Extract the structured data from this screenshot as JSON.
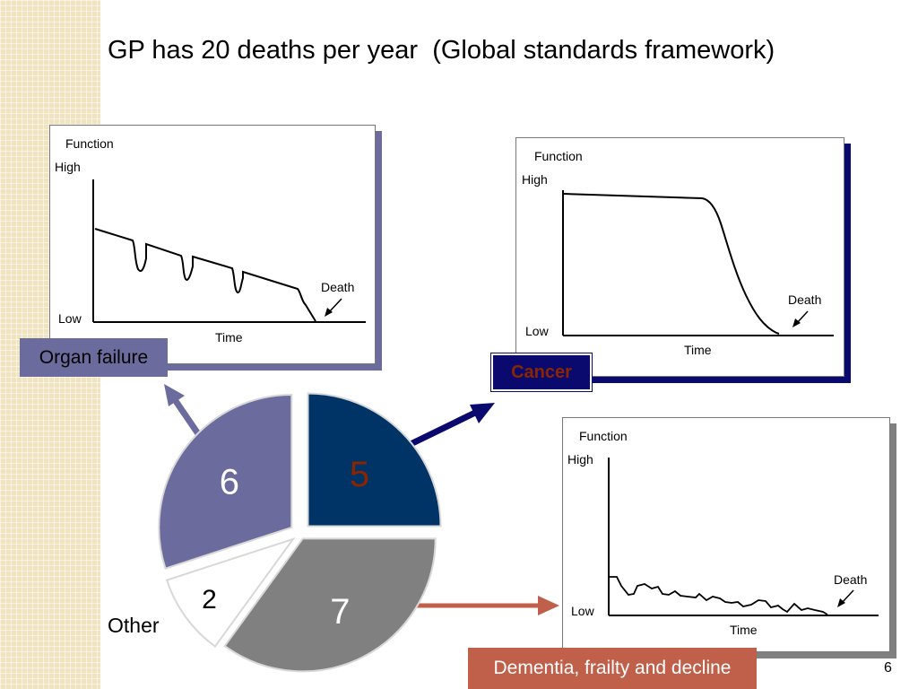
{
  "title": "GP has 20 deaths per year  (Global standards framework)",
  "page_number": "6",
  "colors": {
    "organ_failure": "#6b6b9e",
    "cancer": "#003366",
    "frailty": "#808080",
    "other": "#ffffff",
    "frailty_arrow": "#c0604a",
    "cancer_number": "#8b2500"
  },
  "panels": {
    "organ_failure": {
      "y_title": "Function",
      "high": "High",
      "low": "Low",
      "x_label": "Time",
      "death": "Death",
      "tag": "Organ failure"
    },
    "cancer": {
      "y_title": "Function",
      "high": "High",
      "low": "Low",
      "x_label": "Time",
      "death": "Death",
      "tag": "Cancer"
    },
    "frailty": {
      "y_title": "Function",
      "high": "High",
      "low": "Low",
      "x_label": "Time",
      "death": "Death",
      "tag": "Dementia, frailty and decline"
    }
  },
  "pie": {
    "other_label": "Other"
  },
  "chart_data": {
    "type": "pie",
    "slices": [
      {
        "label": "Cancer",
        "value": 5,
        "text": "5"
      },
      {
        "label": "Dementia, frailty and decline",
        "value": 7,
        "text": "7"
      },
      {
        "label": "Other",
        "value": 2,
        "text": "2"
      },
      {
        "label": "Organ failure",
        "value": 6,
        "text": "6"
      }
    ]
  }
}
